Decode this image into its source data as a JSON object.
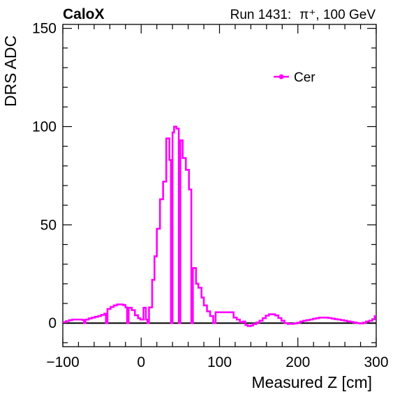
{
  "header": {
    "experiment": "CaloX",
    "run": "Run 1431:",
    "beam": "π⁺, 100 GeV"
  },
  "chart_data": {
    "type": "line",
    "title": "",
    "xlabel": "Measured Z [cm]",
    "ylabel": "DRS ADC",
    "xlim": [
      -100,
      300
    ],
    "ylim": [
      -12,
      152
    ],
    "x_ticks": [
      -100,
      0,
      100,
      200,
      300
    ],
    "x_tick_labels": [
      "−100",
      "0",
      "100",
      "200",
      "300"
    ],
    "y_ticks": [
      0,
      50,
      100,
      150
    ],
    "y_tick_labels": [
      "0",
      "50",
      "100",
      "150"
    ],
    "grid": false,
    "legend": {
      "position": "top-right"
    },
    "series": [
      {
        "name": "Cer",
        "color": "#ff00ff",
        "step": true,
        "points": [
          [
            -100,
            0.5
          ],
          [
            -96,
            1.0
          ],
          [
            -92,
            1.5
          ],
          [
            -88,
            1.8
          ],
          [
            -84,
            1.8
          ],
          [
            -80,
            1.8
          ],
          [
            -75,
            1.6
          ],
          [
            -73,
            0.0
          ],
          [
            -71,
            1.8
          ],
          [
            -67,
            2.4
          ],
          [
            -63,
            2.8
          ],
          [
            -59,
            3.2
          ],
          [
            -55,
            3.6
          ],
          [
            -51,
            4.2
          ],
          [
            -47,
            4.8
          ],
          [
            -45,
            0.0
          ],
          [
            -43,
            7.2
          ],
          [
            -39,
            8.2
          ],
          [
            -35,
            9.0
          ],
          [
            -31,
            9.5
          ],
          [
            -27,
            9.5
          ],
          [
            -23,
            9.2
          ],
          [
            -20,
            8.0
          ],
          [
            -18,
            0.0
          ],
          [
            -16,
            7.8
          ],
          [
            -12,
            6.6
          ],
          [
            -8,
            4.0
          ],
          [
            -4,
            2.5
          ],
          [
            -1,
            1.8
          ],
          [
            3,
            7.8
          ],
          [
            6,
            1.8
          ],
          [
            8,
            0.0
          ],
          [
            10,
            8.0
          ],
          [
            14,
            22.0
          ],
          [
            17,
            34.0
          ],
          [
            20,
            48.0
          ],
          [
            24,
            63.0
          ],
          [
            28,
            72.0
          ],
          [
            32,
            94.0
          ],
          [
            36,
            83.0
          ],
          [
            38,
            0.0
          ],
          [
            40,
            97.0
          ],
          [
            42,
            100.0
          ],
          [
            45,
            99.0
          ],
          [
            48,
            0.0
          ],
          [
            50,
            93.0
          ],
          [
            53,
            84.0
          ],
          [
            57,
            78.0
          ],
          [
            61,
            68.0
          ],
          [
            64,
            0.0
          ],
          [
            66,
            28.0
          ],
          [
            70,
            20.0
          ],
          [
            73,
            18.0
          ],
          [
            77,
            13.0
          ],
          [
            80,
            9.0
          ],
          [
            84,
            6.0
          ],
          [
            88,
            3.6
          ],
          [
            92,
            0.0
          ],
          [
            95,
            5.5
          ],
          [
            100,
            5.5
          ],
          [
            105,
            5.5
          ],
          [
            110,
            5.5
          ],
          [
            115,
            5.5
          ],
          [
            118,
            2.8
          ],
          [
            122,
            1.8
          ],
          [
            126,
            0.5
          ],
          [
            130,
            0.8
          ],
          [
            133,
            -1.0
          ],
          [
            136,
            -1.5
          ],
          [
            140,
            -1.2
          ],
          [
            143,
            -0.5
          ],
          [
            147,
            0.3
          ],
          [
            151,
            1.2
          ],
          [
            155,
            2.5
          ],
          [
            159,
            3.8
          ],
          [
            163,
            4.5
          ],
          [
            167,
            4.5
          ],
          [
            171,
            3.9
          ],
          [
            175,
            2.6
          ],
          [
            179,
            1.2
          ],
          [
            183,
            0.0
          ],
          [
            187,
            -0.4
          ],
          [
            191,
            -0.4
          ],
          [
            195,
            -0.2
          ],
          [
            199,
            0.2
          ],
          [
            203,
            0.8
          ],
          [
            207,
            1.2
          ],
          [
            211,
            1.5
          ],
          [
            215,
            1.8
          ],
          [
            219,
            2.2
          ],
          [
            223,
            2.5
          ],
          [
            227,
            2.8
          ],
          [
            231,
            2.8
          ],
          [
            235,
            2.8
          ],
          [
            239,
            2.6
          ],
          [
            243,
            2.3
          ],
          [
            247,
            2.0
          ],
          [
            251,
            1.8
          ],
          [
            255,
            1.5
          ],
          [
            259,
            1.2
          ],
          [
            263,
            0.9
          ],
          [
            267,
            0.6
          ],
          [
            271,
            0.3
          ],
          [
            275,
            0.0
          ],
          [
            279,
            -0.2
          ],
          [
            283,
            0.2
          ],
          [
            287,
            0.8
          ],
          [
            291,
            1.2
          ],
          [
            295,
            2.0
          ],
          [
            298,
            3.5
          ]
        ]
      }
    ],
    "reference_line": {
      "y": 0,
      "color": "#000000"
    }
  }
}
